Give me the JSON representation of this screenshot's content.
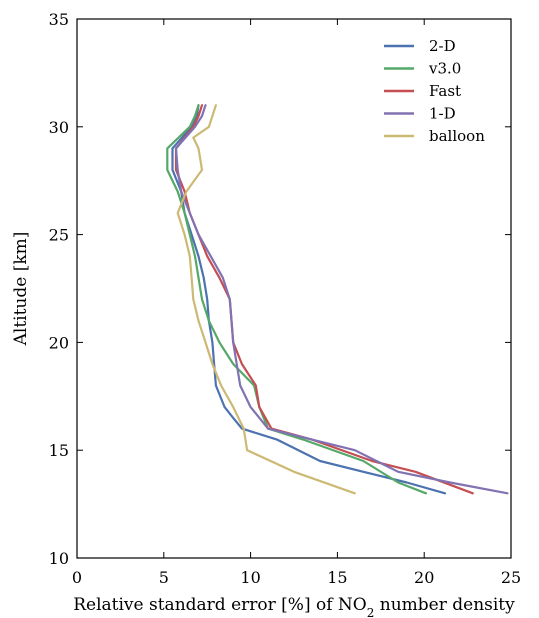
{
  "chart_data": {
    "type": "line",
    "title": "",
    "xlabel": "Relative standard error [%] of NO",
    "xlabel_subscript": "2",
    "xlabel_suffix": " number density",
    "ylabel": "Altitude [km]",
    "xlim": [
      0,
      25
    ],
    "ylim": [
      10,
      35
    ],
    "xticks": [
      0,
      5,
      10,
      15,
      20,
      25
    ],
    "yticks": [
      10,
      15,
      20,
      25,
      30,
      35
    ],
    "grid": false,
    "legend_position": "top-right",
    "series": [
      {
        "name": "2-D",
        "color": "#4c72b0",
        "points": [
          [
            7.0,
            31
          ],
          [
            6.9,
            30.5
          ],
          [
            6.6,
            30
          ],
          [
            5.5,
            29
          ],
          [
            5.5,
            28
          ],
          [
            6.0,
            27
          ],
          [
            6.2,
            26
          ],
          [
            6.6,
            25
          ],
          [
            7.0,
            24
          ],
          [
            7.3,
            23
          ],
          [
            7.5,
            22
          ],
          [
            7.6,
            21
          ],
          [
            7.8,
            20
          ],
          [
            7.9,
            19
          ],
          [
            8.0,
            18
          ],
          [
            8.5,
            17
          ],
          [
            9.0,
            16.5
          ],
          [
            9.5,
            16
          ],
          [
            11.5,
            15.5
          ],
          [
            14.0,
            14.5
          ],
          [
            16.5,
            14
          ],
          [
            19.0,
            13.5
          ],
          [
            21.2,
            13
          ]
        ]
      },
      {
        "name": "v3.0",
        "color": "#55a868",
        "points": [
          [
            7.0,
            31
          ],
          [
            6.8,
            30.5
          ],
          [
            6.5,
            30
          ],
          [
            5.2,
            29
          ],
          [
            5.2,
            28
          ],
          [
            5.8,
            27
          ],
          [
            6.2,
            26
          ],
          [
            6.5,
            25
          ],
          [
            6.8,
            24
          ],
          [
            7.0,
            23
          ],
          [
            7.2,
            22
          ],
          [
            7.6,
            21
          ],
          [
            8.2,
            20
          ],
          [
            9.0,
            19
          ],
          [
            10.2,
            18
          ],
          [
            10.5,
            17
          ],
          [
            11.0,
            16
          ],
          [
            13.0,
            15.5
          ],
          [
            16.5,
            14.5
          ],
          [
            18.5,
            13.5
          ],
          [
            20.1,
            13
          ]
        ]
      },
      {
        "name": "Fast",
        "color": "#c44e52",
        "points": [
          [
            7.2,
            31
          ],
          [
            7.0,
            30.5
          ],
          [
            6.7,
            30
          ],
          [
            5.7,
            29
          ],
          [
            5.7,
            28
          ],
          [
            6.2,
            27
          ],
          [
            6.5,
            26
          ],
          [
            7.0,
            25
          ],
          [
            7.5,
            24
          ],
          [
            8.2,
            23
          ],
          [
            8.8,
            22
          ],
          [
            8.9,
            21
          ],
          [
            9.0,
            20
          ],
          [
            9.5,
            19
          ],
          [
            10.3,
            18
          ],
          [
            10.5,
            17
          ],
          [
            11.2,
            16
          ],
          [
            13.5,
            15.5
          ],
          [
            17.0,
            14.5
          ],
          [
            19.5,
            14
          ],
          [
            22.8,
            13
          ]
        ]
      },
      {
        "name": "1-D",
        "color": "#8172b2",
        "points": [
          [
            7.4,
            31
          ],
          [
            7.2,
            30.5
          ],
          [
            6.8,
            30
          ],
          [
            5.7,
            29
          ],
          [
            5.8,
            28
          ],
          [
            6.0,
            27
          ],
          [
            6.5,
            26
          ],
          [
            7.0,
            25
          ],
          [
            7.7,
            24
          ],
          [
            8.4,
            23
          ],
          [
            8.8,
            22
          ],
          [
            8.9,
            21
          ],
          [
            9.0,
            20
          ],
          [
            9.2,
            19
          ],
          [
            9.4,
            18
          ],
          [
            10.0,
            17
          ],
          [
            11.0,
            16
          ],
          [
            13.5,
            15.5
          ],
          [
            16.0,
            15
          ],
          [
            18.5,
            14
          ],
          [
            21.5,
            13.5
          ],
          [
            24.8,
            13
          ]
        ]
      },
      {
        "name": "balloon",
        "color": "#ccb974",
        "points": [
          [
            8.0,
            31
          ],
          [
            7.6,
            30
          ],
          [
            6.7,
            29.5
          ],
          [
            7.0,
            29
          ],
          [
            7.2,
            28
          ],
          [
            6.3,
            27
          ],
          [
            5.8,
            26
          ],
          [
            6.2,
            25
          ],
          [
            6.5,
            24
          ],
          [
            6.6,
            23
          ],
          [
            6.7,
            22
          ],
          [
            7.0,
            21
          ],
          [
            7.4,
            20
          ],
          [
            7.8,
            19
          ],
          [
            8.3,
            18
          ],
          [
            9.0,
            17
          ],
          [
            9.6,
            16
          ],
          [
            9.8,
            15
          ],
          [
            12.5,
            14
          ],
          [
            16.0,
            13
          ]
        ]
      }
    ]
  }
}
